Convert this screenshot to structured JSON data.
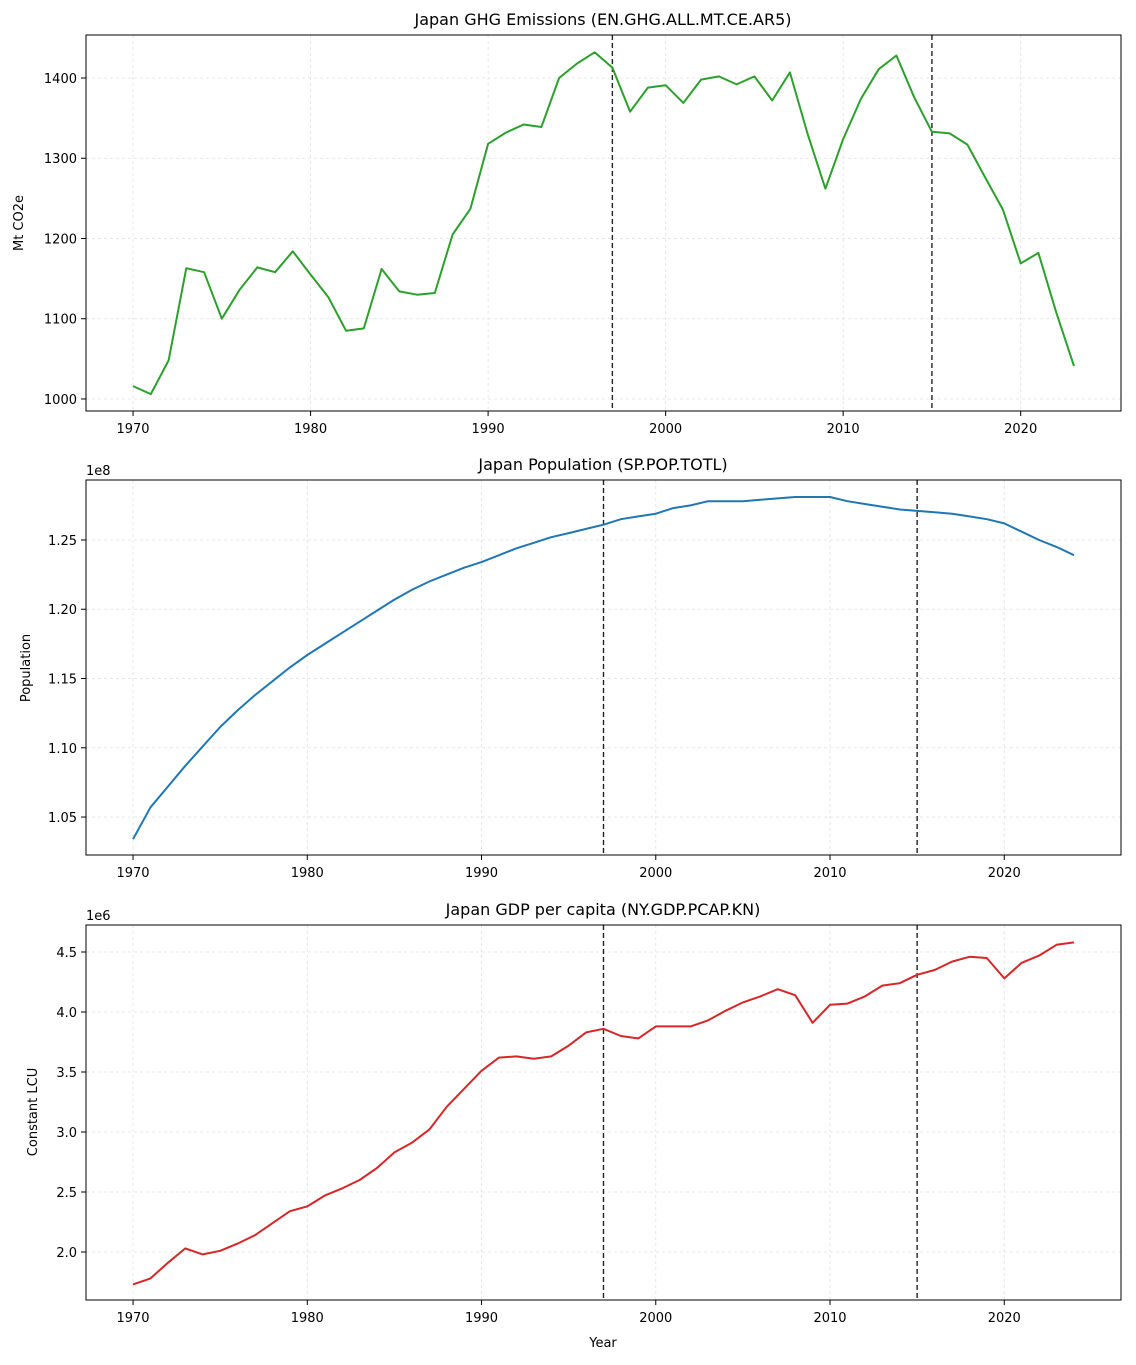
{
  "chart_data": [
    {
      "type": "line",
      "title": "Japan GHG Emissions (EN.GHG.ALL.MT.CE.AR5)",
      "xlabel": "",
      "ylabel": "Mt CO2e",
      "offset_label": "",
      "color": "#2ca02c",
      "xlim": [
        1967.35,
        2025.65
      ],
      "ylim": [
        985,
        1453.6
      ],
      "xticks": [
        1970,
        1980,
        1990,
        2000,
        2010,
        2020
      ],
      "yticks": [
        1000,
        1100,
        1200,
        1300,
        1400
      ],
      "ytick_labels": [
        "1000",
        "1100",
        "1200",
        "1300",
        "1400"
      ],
      "grid": true,
      "vlines": [
        1997,
        2015
      ],
      "x": [
        1970,
        1971,
        1972,
        1973,
        1974,
        1975,
        1976,
        1977,
        1978,
        1979,
        1980,
        1981,
        1982,
        1983,
        1984,
        1985,
        1986,
        1987,
        1988,
        1989,
        1990,
        1991,
        1992,
        1993,
        1994,
        1995,
        1996,
        1997,
        1998,
        1999,
        2000,
        2001,
        2002,
        2003,
        2004,
        2005,
        2006,
        2007,
        2008,
        2009,
        2010,
        2011,
        2012,
        2013,
        2014,
        2015,
        2016,
        2017,
        2018,
        2019,
        2020,
        2021,
        2022,
        2023
      ],
      "y": [
        1016,
        1006,
        1048,
        1163,
        1158,
        1100,
        1136,
        1164,
        1158,
        1184,
        1155,
        1127,
        1085,
        1088,
        1162,
        1134,
        1130,
        1132,
        1205,
        1237,
        1318,
        1332,
        1342,
        1339,
        1400,
        1418,
        1432,
        1413,
        1358,
        1388,
        1391,
        1369,
        1398,
        1402,
        1392,
        1402,
        1372,
        1407,
        1330,
        1262,
        1324,
        1374,
        1411,
        1428,
        1376,
        1333,
        1331,
        1317,
        1276,
        1236,
        1169,
        1182,
        1108,
        1041
      ]
    },
    {
      "type": "line",
      "title": "Japan Population (SP.POP.TOTL)",
      "xlabel": "",
      "ylabel": "Population",
      "offset_label": "1e8",
      "color": "#1f77b4",
      "xlim": [
        1967.3,
        2026.7
      ],
      "ylim": [
        1.0226,
        1.2933
      ],
      "xticks": [
        1970,
        1980,
        1990,
        2000,
        2010,
        2020
      ],
      "yticks": [
        1.05,
        1.1,
        1.15,
        1.2,
        1.25
      ],
      "ytick_labels": [
        "1.05",
        "1.10",
        "1.15",
        "1.20",
        "1.25"
      ],
      "grid": true,
      "vlines": [
        1997,
        2015
      ],
      "x": [
        1970,
        1971,
        1972,
        1973,
        1974,
        1975,
        1976,
        1977,
        1978,
        1979,
        1980,
        1981,
        1982,
        1983,
        1984,
        1985,
        1986,
        1987,
        1988,
        1989,
        1990,
        1991,
        1992,
        1993,
        1994,
        1995,
        1996,
        1997,
        1998,
        1999,
        2000,
        2001,
        2002,
        2003,
        2004,
        2005,
        2006,
        2007,
        2008,
        2009,
        2010,
        2011,
        2012,
        2013,
        2014,
        2015,
        2016,
        2017,
        2018,
        2019,
        2020,
        2021,
        2022,
        2023,
        2024
      ],
      "y": [
        1.034,
        1.057,
        1.072,
        1.087,
        1.101,
        1.115,
        1.127,
        1.138,
        1.148,
        1.158,
        1.167,
        1.175,
        1.183,
        1.191,
        1.199,
        1.207,
        1.214,
        1.22,
        1.225,
        1.23,
        1.234,
        1.239,
        1.244,
        1.248,
        1.252,
        1.255,
        1.258,
        1.261,
        1.265,
        1.267,
        1.269,
        1.273,
        1.275,
        1.278,
        1.278,
        1.278,
        1.279,
        1.28,
        1.281,
        1.281,
        1.281,
        1.278,
        1.276,
        1.274,
        1.272,
        1.271,
        1.27,
        1.269,
        1.267,
        1.265,
        1.262,
        1.256,
        1.25,
        1.245,
        1.239
      ]
    },
    {
      "type": "line",
      "title": "Japan GDP per capita (NY.GDP.PCAP.KN)",
      "xlabel": "Year",
      "ylabel": "Constant LCU",
      "offset_label": "1e6",
      "color": "#d62728",
      "xlim": [
        1967.3,
        2026.7
      ],
      "ylim": [
        1.6,
        4.725
      ],
      "xticks": [
        1970,
        1980,
        1990,
        2000,
        2010,
        2020
      ],
      "yticks": [
        2.0,
        2.5,
        3.0,
        3.5,
        4.0,
        4.5
      ],
      "ytick_labels": [
        "2.0",
        "2.5",
        "3.0",
        "3.5",
        "4.0",
        "4.5"
      ],
      "grid": true,
      "vlines": [
        1997,
        2015
      ],
      "x": [
        1970,
        1971,
        1972,
        1973,
        1974,
        1975,
        1976,
        1977,
        1978,
        1979,
        1980,
        1981,
        1982,
        1983,
        1984,
        1985,
        1986,
        1987,
        1988,
        1989,
        1990,
        1991,
        1992,
        1993,
        1994,
        1995,
        1996,
        1997,
        1998,
        1999,
        2000,
        2001,
        2002,
        2003,
        2004,
        2005,
        2006,
        2007,
        2008,
        2009,
        2010,
        2011,
        2012,
        2013,
        2014,
        2015,
        2016,
        2017,
        2018,
        2019,
        2020,
        2021,
        2022,
        2023,
        2024
      ],
      "y": [
        1.73,
        1.78,
        1.91,
        2.03,
        1.98,
        2.01,
        2.07,
        2.14,
        2.24,
        2.34,
        2.38,
        2.47,
        2.53,
        2.6,
        2.7,
        2.83,
        2.91,
        3.02,
        3.21,
        3.36,
        3.51,
        3.62,
        3.63,
        3.61,
        3.63,
        3.72,
        3.83,
        3.86,
        3.8,
        3.78,
        3.88,
        3.88,
        3.88,
        3.93,
        4.01,
        4.08,
        4.13,
        4.19,
        4.14,
        3.91,
        4.06,
        4.07,
        4.13,
        4.22,
        4.24,
        4.31,
        4.35,
        4.42,
        4.46,
        4.45,
        4.28,
        4.41,
        4.47,
        4.56,
        4.58
      ]
    }
  ]
}
